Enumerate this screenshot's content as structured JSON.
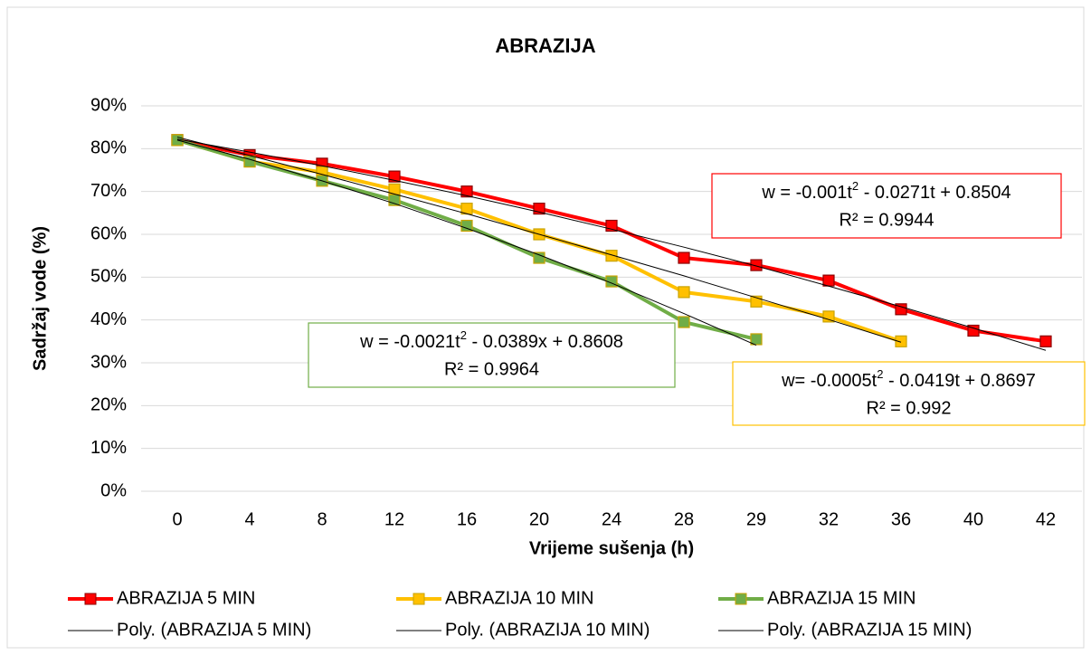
{
  "chart_data": {
    "type": "line",
    "title": "ABRAZIJA",
    "x_label": "Vrijeme sušenja (h)",
    "y_label": "Sadržaj vode (%)",
    "categories": [
      0,
      4,
      8,
      12,
      16,
      20,
      24,
      28,
      29,
      32,
      36,
      40,
      42
    ],
    "ylim": [
      0,
      90
    ],
    "yticks": [
      {
        "value": 0,
        "label": "0%"
      },
      {
        "value": 10,
        "label": "10%"
      },
      {
        "value": 20,
        "label": "20%"
      },
      {
        "value": 30,
        "label": "30%"
      },
      {
        "value": 40,
        "label": "40%"
      },
      {
        "value": 50,
        "label": "50%"
      },
      {
        "value": 60,
        "label": "60%"
      },
      {
        "value": 70,
        "label": "70%"
      },
      {
        "value": 80,
        "label": "80%"
      },
      {
        "value": 90,
        "label": "90%"
      }
    ],
    "grid": true,
    "legend": "bottom",
    "series": [
      {
        "name": "ABRAZIJA 5 MIN",
        "color": "#ff0000",
        "markers": true,
        "values": [
          82,
          78.5,
          76.5,
          73.5,
          70,
          66,
          62,
          54.5,
          52.8,
          49.2,
          42.5,
          37.5,
          35
        ]
      },
      {
        "name": "ABRAZIJA 10 MIN",
        "color": "#ffc000",
        "markers": true,
        "values": [
          82,
          77,
          74.5,
          70.5,
          66,
          60,
          55,
          46.5,
          44.3,
          40.8,
          35,
          null,
          null
        ]
      },
      {
        "name": "ABRAZIJA 15 MIN",
        "color": "#70ad47",
        "markers": true,
        "values": [
          82,
          77,
          72.5,
          68,
          62,
          54.5,
          49,
          39.5,
          35.5,
          null,
          null,
          null,
          null
        ]
      },
      {
        "name": "Poly. (ABRAZIJA 5 MIN)",
        "color": "#000000",
        "markers": false,
        "values": [
          82.2,
          79.2,
          76.0,
          72.6,
          69.0,
          65.2,
          61.2,
          57.0,
          52.6,
          47.9,
          43.1,
          38.1,
          32.9
        ]
      },
      {
        "name": "Poly. (ABRAZIJA 10 MIN)",
        "color": "#000000",
        "markers": false,
        "values": [
          82.7,
          78.4,
          74.0,
          69.4,
          64.8,
          60.0,
          55.2,
          50.3,
          45.2,
          40.1,
          34.8,
          null,
          null
        ]
      },
      {
        "name": "Poly. (ABRAZIJA 15 MIN)",
        "color": "#000000",
        "markers": false,
        "values": [
          82.0,
          77.5,
          72.5,
          67.2,
          61.4,
          55.2,
          48.6,
          41.5,
          34.1,
          null,
          null,
          null,
          null
        ]
      }
    ],
    "annotations": [
      {
        "equation": [
          "w = -0.001t",
          "2",
          " - 0.0271t + 0.8504"
        ],
        "r2": "R² = 0.9944",
        "color": "#ff0000"
      },
      {
        "equation": [
          "w = -0.0021t",
          "2",
          " - 0.0389x + 0.8608"
        ],
        "r2": "R² = 0.9964",
        "color": "#70ad47"
      },
      {
        "equation": [
          "w= -0.0005t",
          "2",
          " - 0.0419t + 0.8697"
        ],
        "r2": "R² = 0.992",
        "color": "#ffc000"
      }
    ]
  }
}
